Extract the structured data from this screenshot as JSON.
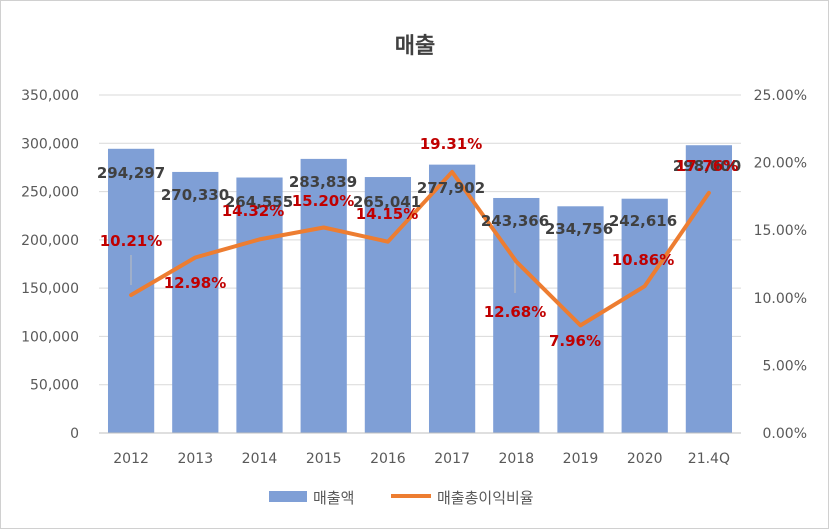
{
  "chart_data": {
    "type": "bar",
    "title": "매출",
    "categories": [
      "2012",
      "2013",
      "2014",
      "2015",
      "2016",
      "2017",
      "2018",
      "2019",
      "2020",
      "21.4Q"
    ],
    "series": [
      {
        "name": "매출액",
        "type": "bar",
        "axis": "left",
        "values": [
          294297,
          270330,
          264555,
          283839,
          265041,
          277902,
          243366,
          234756,
          242616,
          298000
        ],
        "labels": [
          "294,297",
          "270,330",
          "264,555",
          "283,839",
          "265,041",
          "277,902",
          "243,366",
          "234,756",
          "242,616",
          "298,000"
        ]
      },
      {
        "name": "매출총이익비율",
        "type": "line",
        "axis": "right",
        "values": [
          10.21,
          12.98,
          14.32,
          15.2,
          14.15,
          19.31,
          12.68,
          7.96,
          10.86,
          17.76
        ],
        "labels": [
          "10.21%",
          "12.98%",
          "14.32%",
          "15.20%",
          "14.15%",
          "19.31%",
          "12.68%",
          "7.96%",
          "10.86%",
          "17.76%"
        ]
      }
    ],
    "y_left": {
      "ylim": [
        0,
        350000
      ],
      "ticks": [
        0,
        50000,
        100000,
        150000,
        200000,
        250000,
        300000,
        350000
      ],
      "tick_labels": [
        "0",
        "50,000",
        "100,000",
        "150,000",
        "200,000",
        "250,000",
        "300,000",
        "350,000"
      ]
    },
    "y_right": {
      "ylim": [
        0,
        25
      ],
      "ticks": [
        0,
        5,
        10,
        15,
        20,
        25
      ],
      "tick_labels": [
        "0.00%",
        "5.00%",
        "10.00%",
        "15.00%",
        "20.00%",
        "25.00%"
      ]
    },
    "grid": true,
    "legend_position": "bottom",
    "colors": {
      "bar": "#7f9fd6",
      "line": "#ed7d31",
      "line_label": "#c00000",
      "bar_label": "#404040"
    }
  }
}
